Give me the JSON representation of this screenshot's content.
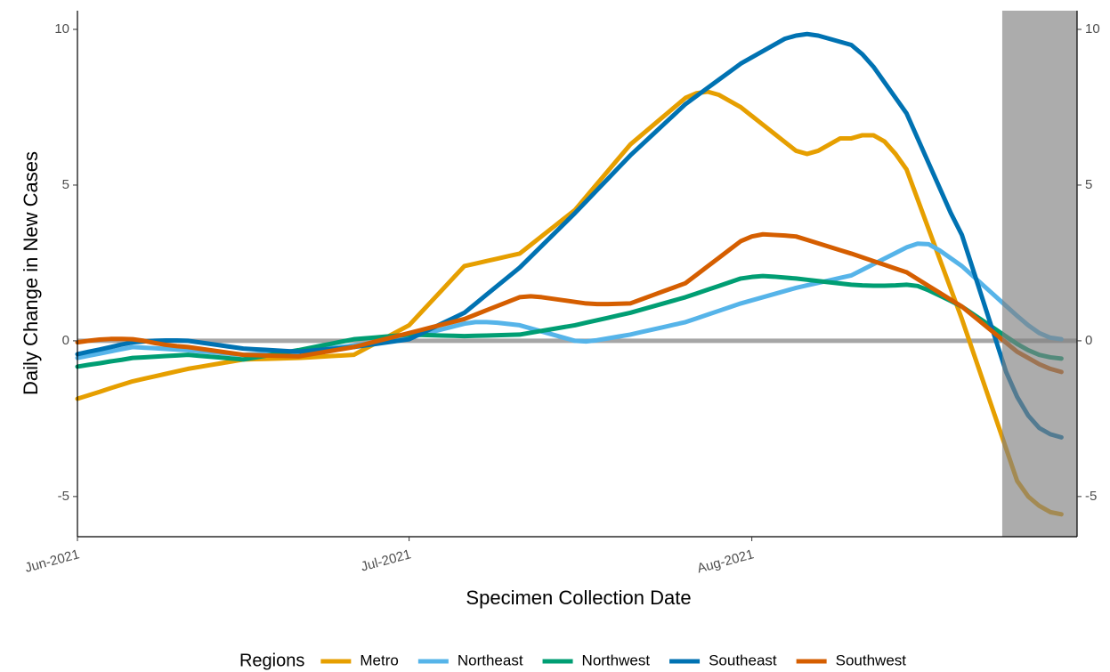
{
  "chart_data": {
    "type": "line",
    "x_label": "Specimen Collection Date",
    "y_label": "Daily Change in New Cases",
    "legend_title": "Regions",
    "legend_position": "bottom",
    "hline": 0,
    "ylim": [
      -6.29,
      10.6
    ],
    "yticks": [
      -5,
      0,
      5,
      10
    ],
    "categories": [
      "Jun-2021",
      null,
      null,
      null,
      null,
      null,
      null,
      null,
      null,
      null,
      null,
      null,
      null,
      null,
      null,
      null,
      null,
      null,
      null,
      null,
      null,
      null,
      null,
      null,
      null,
      null,
      null,
      null,
      null,
      null,
      "Jul-2021",
      null,
      null,
      null,
      null,
      null,
      null,
      null,
      null,
      null,
      null,
      null,
      null,
      null,
      null,
      null,
      null,
      null,
      null,
      null,
      null,
      null,
      null,
      null,
      null,
      null,
      null,
      null,
      null,
      null,
      null,
      "Aug-2021",
      null,
      null,
      null,
      null,
      null,
      null,
      null,
      null,
      null,
      null,
      null,
      null,
      null,
      null,
      null,
      null,
      null,
      null,
      null,
      null,
      null,
      null,
      null,
      null,
      null,
      null,
      null,
      null
    ],
    "series": [
      {
        "name": "Metro",
        "color": "#E69F00",
        "values": [
          -1.86,
          -1.75,
          -1.64,
          -1.52,
          -1.41,
          -1.3,
          -1.22,
          -1.14,
          -1.06,
          -0.98,
          -0.9,
          -0.84,
          -0.78,
          -0.72,
          -0.66,
          -0.6,
          -0.59,
          -0.58,
          -0.57,
          -0.56,
          -0.55,
          -0.53,
          -0.51,
          -0.49,
          -0.47,
          -0.45,
          -0.26,
          -0.07,
          0.12,
          0.31,
          0.5,
          0.88,
          1.26,
          1.64,
          2.02,
          2.4,
          2.48,
          2.56,
          2.64,
          2.72,
          2.8,
          3.08,
          3.36,
          3.64,
          3.92,
          4.2,
          4.62,
          5.04,
          5.46,
          5.88,
          6.3,
          6.6,
          6.9,
          7.2,
          7.5,
          7.8,
          7.95,
          8.0,
          7.9,
          7.7,
          7.5,
          7.22,
          6.94,
          6.66,
          6.38,
          6.1,
          6.0,
          6.1,
          6.3,
          6.5,
          6.5,
          6.6,
          6.6,
          6.4,
          6.0,
          5.5,
          4.54,
          3.58,
          2.62,
          1.66,
          0.7,
          -0.34,
          -1.38,
          -2.42,
          -3.46,
          -4.5,
          -5.0,
          -5.3,
          -5.5,
          -5.57
        ]
      },
      {
        "name": "Northeast",
        "color": "#56B4E9",
        "values": [
          -0.55,
          -0.48,
          -0.41,
          -0.34,
          -0.27,
          -0.2,
          -0.22,
          -0.24,
          -0.26,
          -0.28,
          -0.3,
          -0.33,
          -0.36,
          -0.39,
          -0.42,
          -0.45,
          -0.43,
          -0.41,
          -0.39,
          -0.37,
          -0.35,
          -0.31,
          -0.27,
          -0.23,
          -0.19,
          -0.15,
          -0.1,
          -0.05,
          0.0,
          0.05,
          0.1,
          0.19,
          0.28,
          0.37,
          0.46,
          0.55,
          0.6,
          0.6,
          0.58,
          0.54,
          0.5,
          0.4,
          0.3,
          0.2,
          0.1,
          0.0,
          -0.02,
          0.02,
          0.08,
          0.14,
          0.2,
          0.28,
          0.36,
          0.44,
          0.52,
          0.6,
          0.72,
          0.84,
          0.96,
          1.08,
          1.2,
          1.3,
          1.4,
          1.5,
          1.6,
          1.7,
          1.78,
          1.86,
          1.94,
          2.02,
          2.1,
          2.28,
          2.46,
          2.64,
          2.82,
          3.0,
          3.12,
          3.1,
          2.9,
          2.65,
          2.4,
          2.08,
          1.76,
          1.44,
          1.12,
          0.8,
          0.5,
          0.25,
          0.1,
          0.05
        ]
      },
      {
        "name": "Northwest",
        "color": "#009E73",
        "values": [
          -0.83,
          -0.77,
          -0.72,
          -0.66,
          -0.61,
          -0.55,
          -0.53,
          -0.51,
          -0.49,
          -0.47,
          -0.45,
          -0.48,
          -0.51,
          -0.54,
          -0.57,
          -0.6,
          -0.54,
          -0.48,
          -0.42,
          -0.36,
          -0.3,
          -0.23,
          -0.16,
          -0.09,
          -0.02,
          0.05,
          0.08,
          0.11,
          0.14,
          0.17,
          0.2,
          0.19,
          0.18,
          0.17,
          0.16,
          0.15,
          0.16,
          0.17,
          0.18,
          0.19,
          0.2,
          0.26,
          0.32,
          0.38,
          0.44,
          0.5,
          0.58,
          0.66,
          0.74,
          0.82,
          0.9,
          1.0,
          1.1,
          1.2,
          1.3,
          1.4,
          1.52,
          1.64,
          1.76,
          1.88,
          2.0,
          2.05,
          2.08,
          2.06,
          2.03,
          2.0,
          1.96,
          1.92,
          1.88,
          1.84,
          1.8,
          1.78,
          1.77,
          1.77,
          1.78,
          1.8,
          1.76,
          1.62,
          1.45,
          1.28,
          1.1,
          0.86,
          0.62,
          0.38,
          0.14,
          -0.1,
          -0.3,
          -0.45,
          -0.53,
          -0.57
        ]
      },
      {
        "name": "Southeast",
        "color": "#0072B2",
        "values": [
          -0.43,
          -0.35,
          -0.28,
          -0.2,
          -0.12,
          -0.05,
          -0.02,
          0.0,
          0.01,
          0.01,
          0.0,
          -0.05,
          -0.1,
          -0.15,
          -0.2,
          -0.25,
          -0.27,
          -0.29,
          -0.31,
          -0.33,
          -0.35,
          -0.32,
          -0.29,
          -0.26,
          -0.23,
          -0.2,
          -0.15,
          -0.1,
          -0.05,
          0.0,
          0.05,
          0.22,
          0.39,
          0.56,
          0.73,
          0.9,
          1.19,
          1.48,
          1.77,
          2.06,
          2.35,
          2.7,
          3.05,
          3.4,
          3.75,
          4.1,
          4.47,
          4.84,
          5.21,
          5.58,
          5.95,
          6.28,
          6.61,
          6.94,
          7.27,
          7.6,
          7.86,
          8.12,
          8.38,
          8.64,
          8.9,
          9.1,
          9.3,
          9.5,
          9.7,
          9.8,
          9.85,
          9.8,
          9.7,
          9.6,
          9.5,
          9.2,
          8.8,
          8.3,
          7.8,
          7.3,
          6.5,
          5.7,
          4.9,
          4.1,
          3.4,
          2.3,
          1.2,
          0.1,
          -1.0,
          -1.8,
          -2.4,
          -2.8,
          -3.0,
          -3.1
        ]
      },
      {
        "name": "Southwest",
        "color": "#D55E00",
        "values": [
          -0.05,
          0.0,
          0.04,
          0.06,
          0.06,
          0.05,
          0.0,
          -0.07,
          -0.13,
          -0.17,
          -0.2,
          -0.25,
          -0.3,
          -0.35,
          -0.4,
          -0.45,
          -0.46,
          -0.47,
          -0.48,
          -0.49,
          -0.5,
          -0.44,
          -0.38,
          -0.32,
          -0.26,
          -0.2,
          -0.11,
          -0.02,
          0.07,
          0.16,
          0.25,
          0.34,
          0.43,
          0.52,
          0.61,
          0.7,
          0.84,
          0.98,
          1.12,
          1.26,
          1.4,
          1.43,
          1.4,
          1.35,
          1.3,
          1.25,
          1.2,
          1.18,
          1.18,
          1.19,
          1.2,
          1.33,
          1.46,
          1.59,
          1.72,
          1.85,
          2.12,
          2.39,
          2.66,
          2.93,
          3.2,
          3.35,
          3.42,
          3.4,
          3.38,
          3.35,
          3.24,
          3.13,
          3.02,
          2.91,
          2.8,
          2.68,
          2.56,
          2.44,
          2.32,
          2.2,
          1.98,
          1.76,
          1.54,
          1.32,
          1.1,
          0.81,
          0.52,
          0.23,
          -0.06,
          -0.35,
          -0.55,
          -0.75,
          -0.9,
          -1.0
        ]
      }
    ]
  }
}
